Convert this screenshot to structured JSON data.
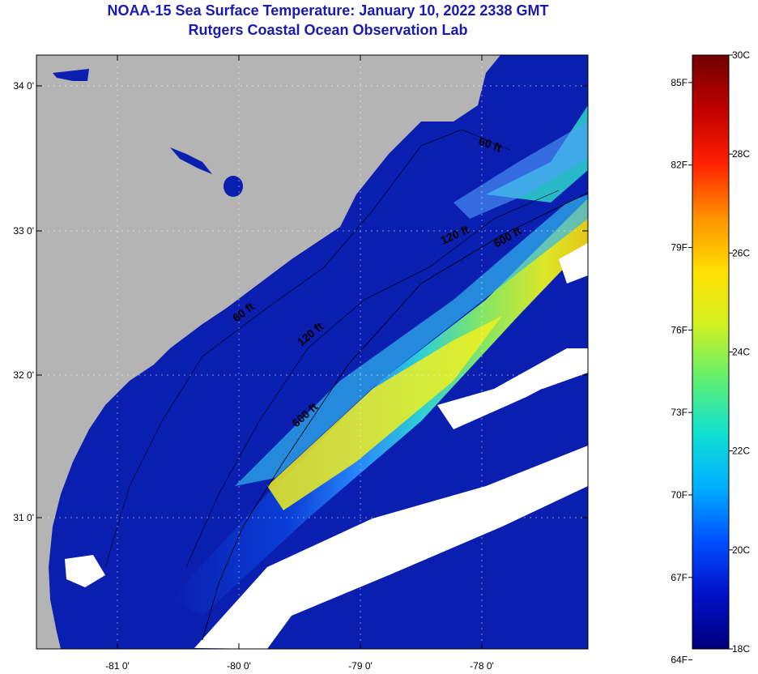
{
  "titles": {
    "line1": "NOAA-15 Sea Surface Temperature:  January 10, 2022 2338 GMT",
    "line2": "Rutgers Coastal Ocean Observation Lab"
  },
  "map": {
    "lat_labels": [
      "34 0'",
      "33 0'",
      "32 0'",
      "31 0'"
    ],
    "lon_labels": [
      "-81 0'",
      "-80 0'",
      "-79 0'",
      "-78 0'"
    ],
    "contour_labels": [
      "60 ft",
      "60 ft",
      "120 ft",
      "120 ft",
      "600 ft",
      "600 ft"
    ],
    "colors": {
      "land": "#b4b4b4",
      "cloud": "#ffffff",
      "ocean_cold": "#0a1fb0"
    }
  },
  "colorbar": {
    "fahrenheit_labels": [
      "85F",
      "82F",
      "79F",
      "76F",
      "73F",
      "70F",
      "67F",
      "64F"
    ],
    "celsius_labels": [
      "30C",
      "28C",
      "26C",
      "24C",
      "22C",
      "20C",
      "18C"
    ],
    "range_c": [
      18,
      30
    ],
    "stops": [
      "#00007a",
      "#0010c8",
      "#0050ff",
      "#00b0ff",
      "#10e0d0",
      "#60f070",
      "#d0f020",
      "#ffe000",
      "#ff9000",
      "#ff2000",
      "#c00000",
      "#700000"
    ]
  }
}
